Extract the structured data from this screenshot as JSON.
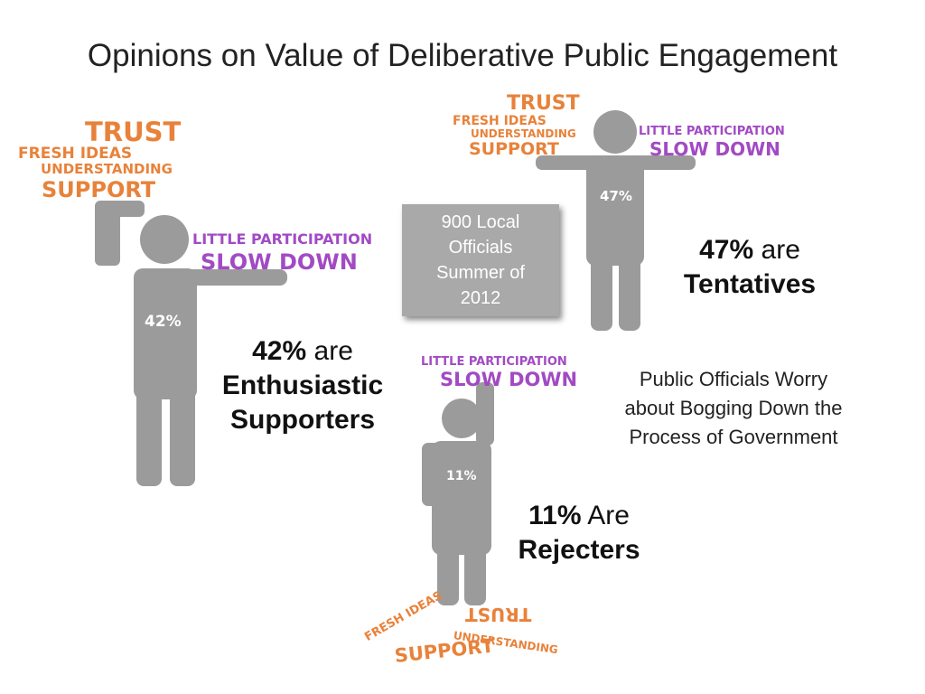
{
  "title": "Opinions on Value of Deliberative Public Engagement",
  "colors": {
    "figure": "#9b9b9b",
    "orange": "#e8823a",
    "purple": "#a24ac4"
  },
  "figures": {
    "enthusiastic": {
      "percent": "42%",
      "label_pct": "42%",
      "label_rest": "are",
      "label_line2": "Enthusiastic",
      "label_line3": "Supporters",
      "positive_words": [
        "TRUST",
        "FRESH IDEAS",
        "UNDERSTANDING",
        "SUPPORT"
      ],
      "negative_words": [
        "LITTLE PARTICIPATION",
        "SLOW DOWN"
      ]
    },
    "tentative": {
      "percent": "47%",
      "label_pct": "47%",
      "label_rest": "are",
      "label_line2": "Tentatives",
      "positive_words": [
        "TRUST",
        "FRESH IDEAS",
        "UNDERSTANDING",
        "SUPPORT"
      ],
      "negative_words": [
        "LITTLE PARTICIPATION",
        "SLOW DOWN"
      ]
    },
    "rejecter": {
      "percent": "11%",
      "label_pct": "11%",
      "label_rest": "Are",
      "label_line2": "Rejecters",
      "positive_words": [
        "TRUST",
        "FRESH IDEAS",
        "UNDERSTANDING",
        "SUPPORT"
      ],
      "negative_words": [
        "LITTLE PARTICIPATION",
        "SLOW DOWN"
      ]
    }
  },
  "sample_box": {
    "line1": "900 Local",
    "line2": "Officials",
    "line3": "Summer of",
    "line4": "2012"
  },
  "note": {
    "line1": "Public Officials Worry",
    "line2": "about Bogging Down the",
    "line3": "Process of Government"
  }
}
